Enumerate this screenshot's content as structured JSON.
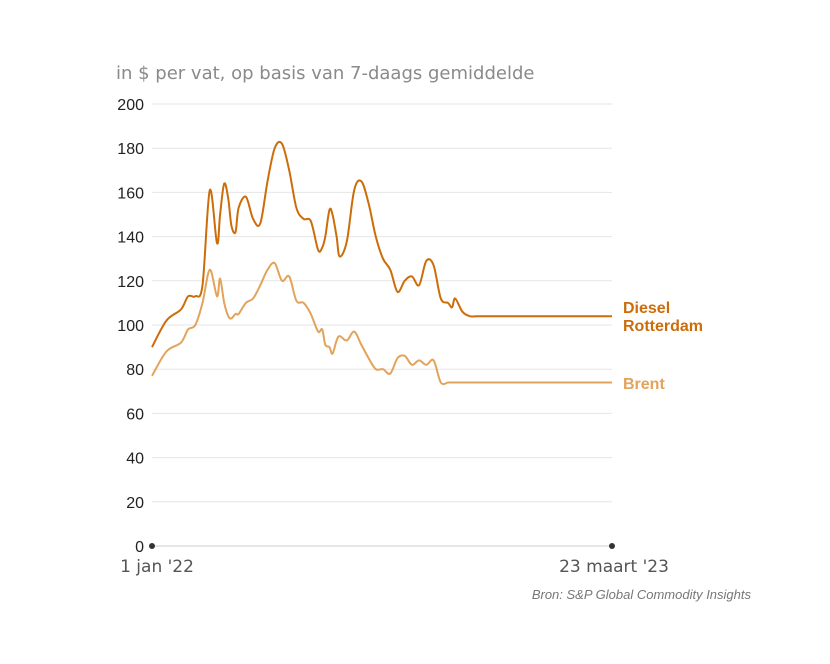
{
  "chart_data": {
    "type": "line",
    "subtitle": "in $ per vat, op basis van 7-daags gemiddelde",
    "source": "Bron: S&P Global Commodity Insights",
    "x_start_label": "1 jan '22",
    "x_end_label": "23 maart '23",
    "ylim": [
      0,
      200
    ],
    "yticks": [
      "0",
      "20",
      "40",
      "60",
      "80",
      "100",
      "120",
      "140",
      "160",
      "180",
      "200"
    ],
    "grid": true,
    "legend": "right-end labels",
    "x": [
      "2022-01-01",
      "2022-01-15",
      "2022-01-29",
      "2022-02-05",
      "2022-02-12",
      "2022-02-19",
      "2022-02-26",
      "2022-03-05",
      "2022-03-08",
      "2022-03-12",
      "2022-03-16",
      "2022-03-19",
      "2022-03-23",
      "2022-03-26",
      "2022-04-02",
      "2022-04-09",
      "2022-04-16",
      "2022-04-23",
      "2022-04-30",
      "2022-05-07",
      "2022-05-14",
      "2022-05-21",
      "2022-05-28",
      "2022-06-04",
      "2022-06-11",
      "2022-06-15",
      "2022-06-18",
      "2022-06-22",
      "2022-06-25",
      "2022-06-29",
      "2022-07-02",
      "2022-07-09",
      "2022-07-16",
      "2022-07-23",
      "2022-07-30",
      "2022-08-06",
      "2022-08-13",
      "2022-08-20",
      "2022-08-27",
      "2022-09-03",
      "2022-09-10",
      "2022-09-17",
      "2022-09-24",
      "2022-10-01",
      "2022-10-08",
      "2022-10-15",
      "2022-10-19",
      "2022-10-22",
      "2022-10-29",
      "2022-11-05",
      "2022-11-12",
      "2022-11-19",
      "2022-11-26",
      "2022-12-03",
      "2022-12-10",
      "2022-12-17",
      "2022-12-24",
      "2022-12-31",
      "2023-01-07",
      "2023-01-14",
      "2023-01-21",
      "2023-01-28",
      "2023-02-04",
      "2023-02-11",
      "2023-02-18",
      "2023-02-25",
      "2023-03-04",
      "2023-03-11",
      "2023-03-18",
      "2023-03-23"
    ],
    "series": [
      {
        "name": "Diesel Rotterdam",
        "color": "#cc6d0a",
        "values": [
          90,
          102,
          107,
          113,
          113,
          118,
          161,
          137,
          150,
          164,
          157,
          145,
          142,
          153,
          158,
          148,
          146,
          165,
          180,
          182,
          170,
          153,
          148,
          147,
          134,
          135,
          140,
          152,
          150,
          140,
          131,
          138,
          161,
          165,
          155,
          140,
          130,
          125,
          115,
          120,
          122,
          118,
          129,
          127,
          112,
          110,
          108,
          112,
          106,
          104,
          104,
          104,
          104,
          104,
          104,
          104,
          104,
          104,
          104,
          104,
          104,
          104,
          104,
          104,
          104,
          104,
          104,
          104,
          104,
          104
        ]
      },
      {
        "name": "Brent",
        "color": "#e2a35a",
        "values": [
          77,
          88,
          92,
          98,
          100,
          110,
          125,
          113,
          121,
          110,
          104,
          103,
          105,
          105,
          110,
          112,
          118,
          125,
          128,
          120,
          122,
          111,
          110,
          105,
          97,
          98,
          91,
          90,
          87,
          93,
          95,
          93,
          97,
          91,
          85,
          80,
          80,
          78,
          85,
          86,
          82,
          84,
          82,
          84,
          74,
          74,
          74,
          74,
          74,
          74,
          74,
          74,
          74,
          74,
          74,
          74,
          74,
          74,
          74,
          74,
          74,
          74,
          74,
          74,
          74,
          74,
          74,
          74,
          74,
          74
        ]
      }
    ]
  }
}
